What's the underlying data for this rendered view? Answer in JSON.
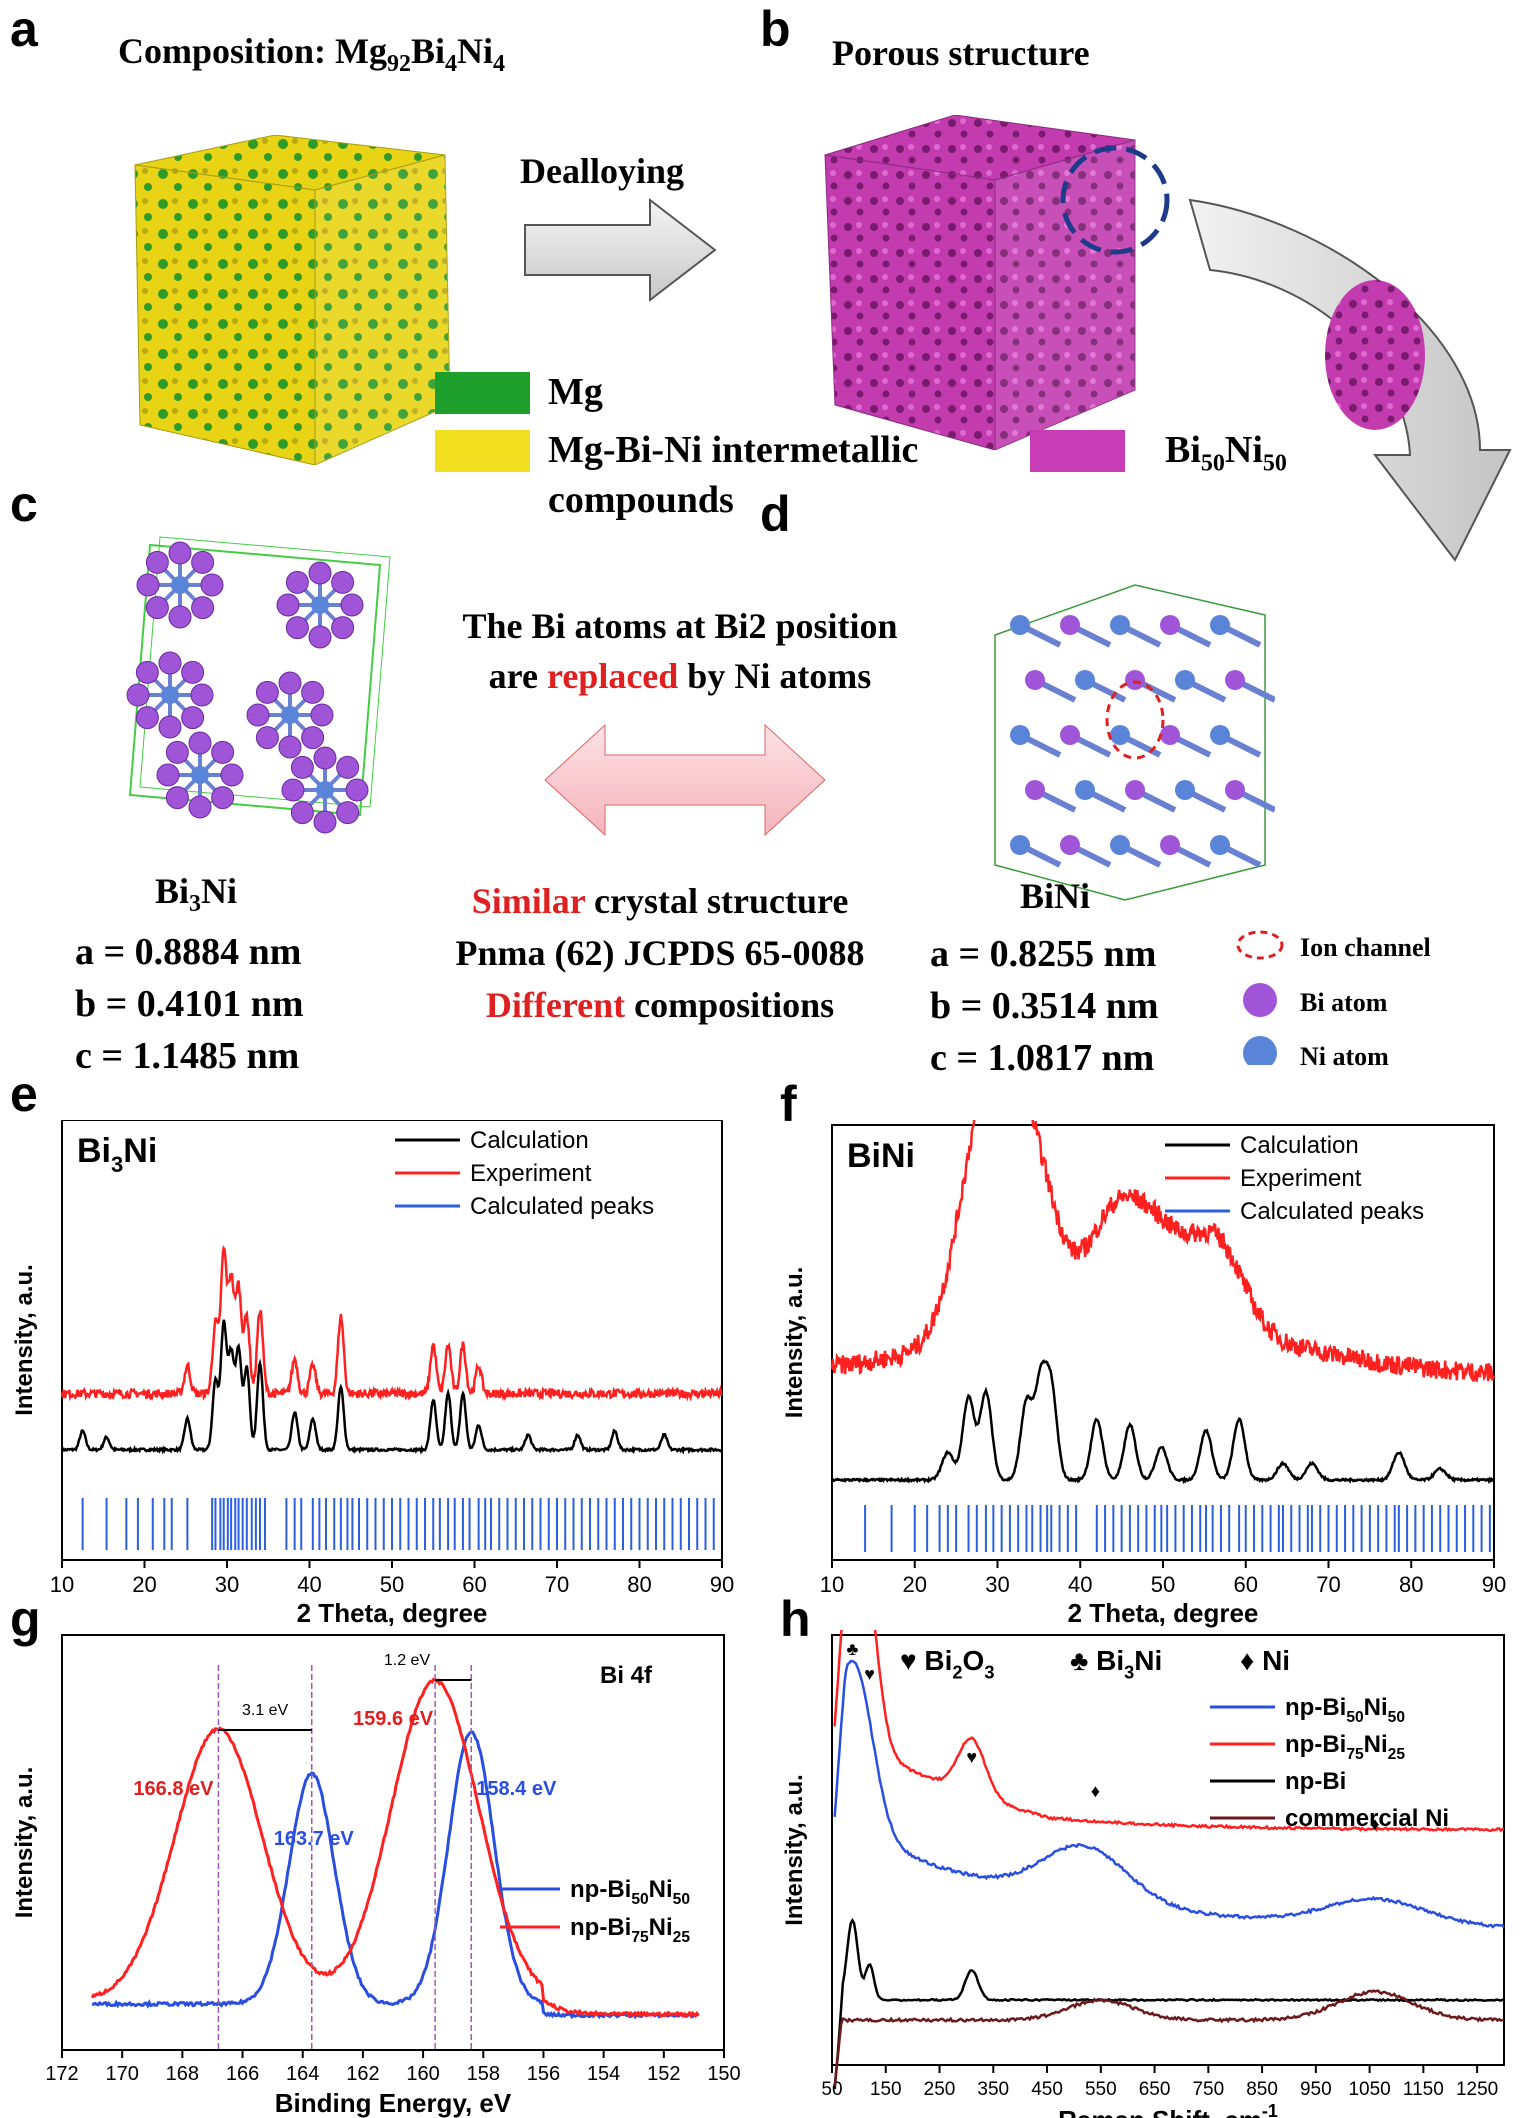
{
  "panels": {
    "a": {
      "letter": "a",
      "title_prefix": "Composition: Mg",
      "title_sub1": "92",
      "title_mid1": "Bi",
      "title_sub2": "4",
      "title_mid2": "Ni",
      "title_sub3": "4"
    },
    "b": {
      "letter": "b",
      "title": "Porous structure"
    },
    "arrow_label": "Dealloying",
    "legend_ab": {
      "mg": "Mg",
      "intermetallic": "Mg-Bi-Ni intermetallic",
      "intermetallic2": "compounds",
      "binip": "Bi",
      "binip_sub1": "50",
      "binip_mid": "Ni",
      "binip_sub2": "50"
    },
    "c": {
      "letter": "c",
      "name_prefix": "Bi",
      "name_sub": "3",
      "name_suffix": "Ni",
      "a": "a = 0.8884 nm",
      "b": "b = 0.4101 nm",
      "c": "c = 1.1485 nm"
    },
    "d": {
      "letter": "d",
      "name": "BiNi",
      "a": "a = 0.8255 nm",
      "b": "b = 0.3514 nm",
      "c": "c = 1.0817 nm"
    },
    "middle": {
      "line1": "The Bi atoms at Bi2 position",
      "line2_pre": "are ",
      "line2_red": "replaced",
      "line2_post": " by Ni atoms",
      "sim_red": "Similar",
      "sim_rest": " crystal structure",
      "pnma": "Pnma (62) JCPDS 65-0088",
      "diff_red": "Different",
      "diff_rest": " compositions"
    },
    "legend_cd": {
      "ion": "Ion channel",
      "bi": "Bi atom",
      "ni": "Ni atom"
    },
    "colors": {
      "mg": "#1e9e2a",
      "intermetallic": "#f2e020",
      "binip": "#c83cb6",
      "bi_atom": "#a055d8",
      "ni_atom": "#5a84d8",
      "red": "#e02020",
      "blue": "#2a4fe0"
    }
  },
  "chart_data": [
    {
      "type": "line",
      "panel": "e",
      "title": "Bi3Ni",
      "title_main": "Bi",
      "title_sub": "3",
      "title_tail": "Ni",
      "xlabel": "2 Theta, degree",
      "ylabel": "Intensity, a.u.",
      "xlim": [
        10,
        90
      ],
      "xticks": [
        "10",
        "20",
        "30",
        "40",
        "50",
        "60",
        "70",
        "80",
        "90"
      ],
      "legend": [
        "Calculation",
        "Experiment",
        "Calculated peaks"
      ],
      "series": [
        {
          "name": "Calculation",
          "color": "#000000",
          "peaks": [
            [
              12.5,
              0.15
            ],
            [
              15.4,
              0.1
            ],
            [
              25.2,
              0.25
            ],
            [
              28.6,
              0.55
            ],
            [
              29.6,
              1.0
            ],
            [
              30.5,
              0.75
            ],
            [
              31.4,
              0.8
            ],
            [
              32.4,
              0.65
            ],
            [
              34.0,
              0.7
            ],
            [
              38.2,
              0.3
            ],
            [
              40.4,
              0.25
            ],
            [
              43.8,
              0.5
            ],
            [
              55.0,
              0.4
            ],
            [
              56.8,
              0.45
            ],
            [
              58.6,
              0.45
            ],
            [
              60.5,
              0.2
            ],
            [
              66.5,
              0.12
            ],
            [
              72.5,
              0.12
            ],
            [
              77.0,
              0.15
            ],
            [
              83.0,
              0.12
            ]
          ]
        },
        {
          "name": "Experiment",
          "color": "#ff2020",
          "peaks": [
            [
              25.2,
              0.2
            ],
            [
              28.6,
              0.5
            ],
            [
              29.6,
              1.0
            ],
            [
              30.5,
              0.8
            ],
            [
              31.4,
              0.75
            ],
            [
              32.4,
              0.55
            ],
            [
              34.0,
              0.6
            ],
            [
              38.2,
              0.25
            ],
            [
              40.4,
              0.2
            ],
            [
              43.8,
              0.55
            ],
            [
              55.0,
              0.35
            ],
            [
              56.8,
              0.35
            ],
            [
              58.6,
              0.35
            ],
            [
              60.5,
              0.2
            ]
          ]
        },
        {
          "name": "Calculated peaks",
          "color": "#2a5fe0",
          "positions": [
            12.5,
            15.4,
            17.8,
            19.2,
            21.0,
            22.4,
            23.3,
            25.2,
            28.2,
            28.6,
            29.2,
            29.6,
            30.1,
            30.5,
            31.0,
            31.4,
            31.9,
            32.4,
            33.0,
            33.5,
            34.0,
            34.6,
            37.2,
            38.2,
            39.0,
            40.4,
            41.2,
            42.0,
            43.0,
            43.8,
            44.6,
            45.2,
            46.0,
            47.0,
            48.0,
            49.0,
            50.0,
            51.0,
            52.0,
            53.0,
            54.0,
            55.0,
            55.8,
            56.8,
            57.6,
            58.6,
            59.4,
            60.5,
            61.3,
            62.0,
            63.0,
            64.0,
            65.0,
            66.0,
            67.0,
            68.0,
            69.0,
            70.0,
            71.0,
            72.0,
            73.0,
            74.0,
            75.0,
            76.0,
            77.0,
            78.0,
            79.0,
            80.0,
            81.0,
            82.0,
            83.0,
            84.0,
            85.0,
            86.0,
            87.0,
            88.0,
            89.0
          ]
        }
      ]
    },
    {
      "type": "line",
      "panel": "f",
      "title": "BiNi",
      "xlabel": "2 Theta, degree",
      "ylabel": "Intensity, a.u.",
      "xlim": [
        10,
        90
      ],
      "xticks": [
        "10",
        "20",
        "30",
        "40",
        "50",
        "60",
        "70",
        "80",
        "90"
      ],
      "legend": [
        "Calculation",
        "Experiment",
        "Calculated peaks"
      ],
      "series": [
        {
          "name": "Calculation",
          "color": "#000000",
          "peaks": [
            [
              24.0,
              0.25
            ],
            [
              26.5,
              0.75
            ],
            [
              28.6,
              0.8
            ],
            [
              33.5,
              0.7
            ],
            [
              35.2,
              0.85
            ],
            [
              36.5,
              0.8
            ],
            [
              42.0,
              0.55
            ],
            [
              46.0,
              0.5
            ],
            [
              49.8,
              0.3
            ],
            [
              55.2,
              0.45
            ],
            [
              59.2,
              0.55
            ],
            [
              64.5,
              0.15
            ],
            [
              68.0,
              0.15
            ],
            [
              78.5,
              0.25
            ],
            [
              83.5,
              0.1
            ]
          ]
        },
        {
          "name": "Experiment",
          "color": "#ff2020",
          "peaks": [
            [
              28.6,
              1.0
            ],
            [
              33.8,
              0.75
            ],
            [
              44.0,
              0.45
            ],
            [
              49.5,
              0.35
            ],
            [
              56.5,
              0.4
            ]
          ]
        },
        {
          "name": "Calculated peaks",
          "color": "#2a5fe0",
          "positions": [
            14.0,
            17.2,
            20.0,
            21.5,
            23.0,
            24.0,
            25.0,
            26.5,
            27.5,
            28.6,
            29.5,
            30.5,
            31.5,
            32.5,
            33.5,
            34.2,
            35.2,
            36.0,
            36.5,
            37.5,
            38.5,
            39.5,
            42.0,
            43.0,
            44.0,
            45.0,
            46.0,
            47.0,
            48.0,
            49.0,
            49.8,
            50.5,
            51.5,
            52.5,
            53.5,
            54.5,
            55.2,
            56.0,
            57.0,
            58.0,
            59.2,
            60.0,
            61.0,
            62.0,
            63.0,
            64.0,
            64.5,
            65.5,
            66.5,
            67.5,
            68.0,
            69.0,
            70.0,
            71.0,
            72.0,
            73.0,
            74.0,
            75.0,
            76.0,
            77.0,
            78.0,
            78.5,
            79.5,
            80.5,
            81.5,
            82.5,
            83.5,
            84.5,
            85.5,
            86.5,
            87.5,
            88.5,
            89.5
          ]
        }
      ]
    },
    {
      "type": "line",
      "panel": "g",
      "title": "Bi 4f",
      "xlabel": "Binding Energy, eV",
      "ylabel": "Intensity, a.u.",
      "xlim": [
        172,
        150
      ],
      "xticks": [
        "172",
        "170",
        "168",
        "166",
        "164",
        "162",
        "160",
        "158",
        "156",
        "154",
        "152",
        "150"
      ],
      "annotations": [
        "166.8 eV",
        "163.7 eV",
        "159.6 eV",
        "158.4 eV",
        "3.1 eV",
        "1.2 eV"
      ],
      "series": [
        {
          "name": "np-Bi50Ni50",
          "label_main": "np-Bi",
          "sub1": "50",
          "mid": "Ni",
          "sub2": "50",
          "color": "#2a4fe0",
          "peaks": [
            [
              163.7,
              0.72
            ],
            [
              158.4,
              0.85
            ]
          ]
        },
        {
          "name": "np-Bi75Ni25",
          "label_main": "np-Bi",
          "sub1": "75",
          "mid": "Ni",
          "sub2": "25",
          "color": "#ff2020",
          "peaks": [
            [
              166.8,
              0.85
            ],
            [
              159.6,
              1.0
            ]
          ]
        }
      ]
    },
    {
      "type": "line",
      "panel": "h",
      "xlabel": "Raman Shift, cm",
      "xlabel_sup": "-1",
      "ylabel": "Intensity, a.u.",
      "xlim": [
        50,
        1300
      ],
      "xticks": [
        "50",
        "150",
        "250",
        "350",
        "450",
        "550",
        "650",
        "750",
        "850",
        "950",
        "1050",
        "1150",
        "1250"
      ],
      "legend_top": [
        "Bi2O3",
        "Bi3Ni",
        "Ni"
      ],
      "legend_top_parts": [
        {
          "sym": "♥",
          "main": "Bi",
          "sub": "2",
          "tail": "O",
          "sub2": "3"
        },
        {
          "sym": "♣",
          "main": "Bi",
          "sub": "3",
          "tail": "Ni",
          "sub2": ""
        },
        {
          "sym": "♦",
          "main": "Ni",
          "sub": "",
          "tail": "",
          "sub2": ""
        }
      ],
      "series": [
        {
          "name": "np-Bi50Ni50",
          "label_main": "np-Bi",
          "sub1": "50",
          "mid": "Ni",
          "sub2": "50",
          "color": "#2a4fe0"
        },
        {
          "name": "np-Bi75Ni25",
          "label_main": "np-Bi",
          "sub1": "75",
          "mid": "Ni",
          "sub2": "25",
          "color": "#ff2020"
        },
        {
          "name": "np-Bi",
          "color": "#000000"
        },
        {
          "name": "commercial Ni",
          "color": "#6b1a1a"
        }
      ]
    }
  ]
}
